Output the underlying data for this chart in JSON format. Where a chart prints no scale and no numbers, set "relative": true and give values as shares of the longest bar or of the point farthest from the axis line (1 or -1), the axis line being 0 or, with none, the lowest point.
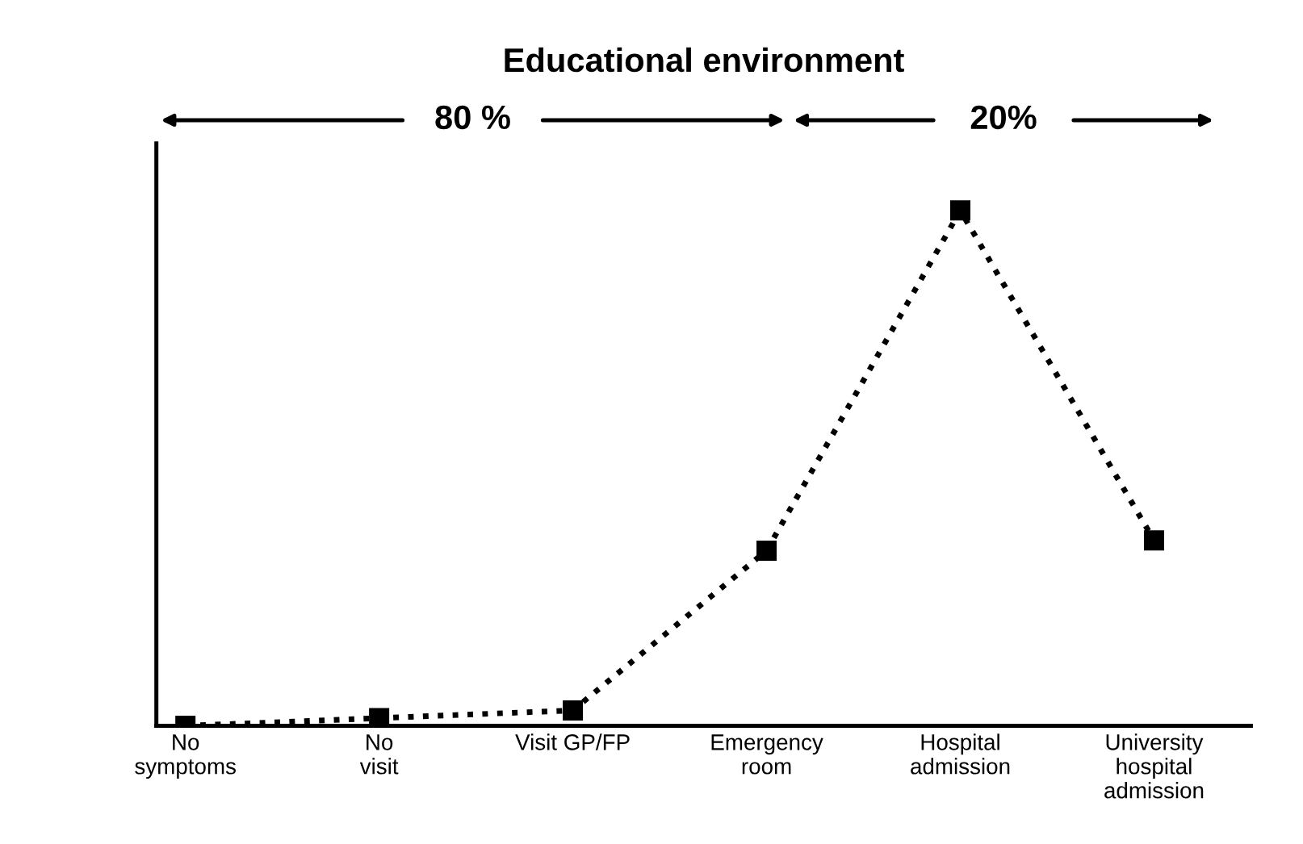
{
  "chart_data": {
    "type": "line",
    "title": "Educational environment",
    "categories": [
      "No\nsymptoms",
      "No\nvisit",
      "Visit GP/FP",
      "Emergency\nroom",
      "Hospital\nadmission",
      "University\nhospital\nadmission"
    ],
    "relative": true,
    "series": [
      {
        "color": "#000000",
        "values": [
          0.0,
          0.015,
          0.03,
          0.34,
          1.0,
          0.36
        ]
      }
    ],
    "marker": "square",
    "line_style": "dotted",
    "grid": false,
    "legend": false,
    "annotations": [
      "80 %",
      "20%"
    ]
  }
}
